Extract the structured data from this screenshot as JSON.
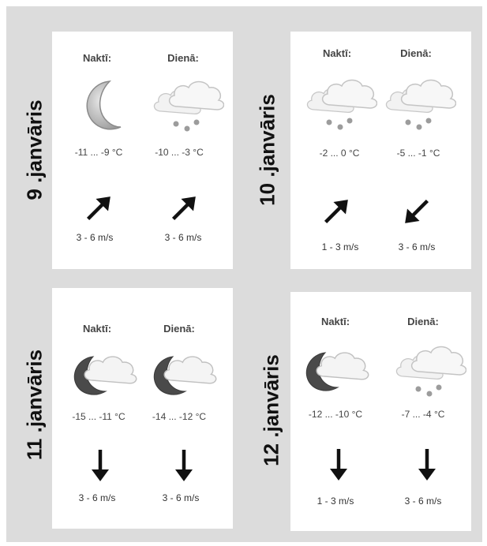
{
  "days": [
    {
      "date": "9 .janvāris",
      "night": {
        "label": "Naktī:",
        "icon": "moon-icon",
        "temp": "-11 ... -9 °C",
        "wind_dir": 45,
        "wind": "3 - 6 m/s"
      },
      "day": {
        "label": "Dienā:",
        "icon": "cloud-snow-icon",
        "temp": "-10 ... -3 °C",
        "wind_dir": 45,
        "wind": "3 - 6 m/s"
      }
    },
    {
      "date": "10 .janvāris",
      "night": {
        "label": "Naktī:",
        "icon": "cloud-snow-icon",
        "temp": "-2 ... 0 °C",
        "wind_dir": 45,
        "wind": "1 - 3 m/s"
      },
      "day": {
        "label": "Dienā:",
        "icon": "cloud-snow-icon",
        "temp": "-5 ... -1 °C",
        "wind_dir": 225,
        "wind": "3 - 6 m/s"
      }
    },
    {
      "date": "11 .janvāris",
      "night": {
        "label": "Naktī:",
        "icon": "moon-cloud-icon",
        "temp": "-15 ... -11 °C",
        "wind_dir": 180,
        "wind": "3 - 6 m/s"
      },
      "day": {
        "label": "Dienā:",
        "icon": "moon-cloud-icon",
        "temp": "-14 ... -12 °C",
        "wind_dir": 180,
        "wind": "3 - 6 m/s"
      }
    },
    {
      "date": "12 .janvāris",
      "night": {
        "label": "Naktī:",
        "icon": "moon-cloud-icon",
        "temp": "-12 ... -10 °C",
        "wind_dir": 180,
        "wind": "1 - 3 m/s"
      },
      "day": {
        "label": "Dienā:",
        "icon": "cloud-snow-icon",
        "temp": "-7 ... -4 °C",
        "wind_dir": 180,
        "wind": "3 - 6 m/s"
      }
    }
  ]
}
